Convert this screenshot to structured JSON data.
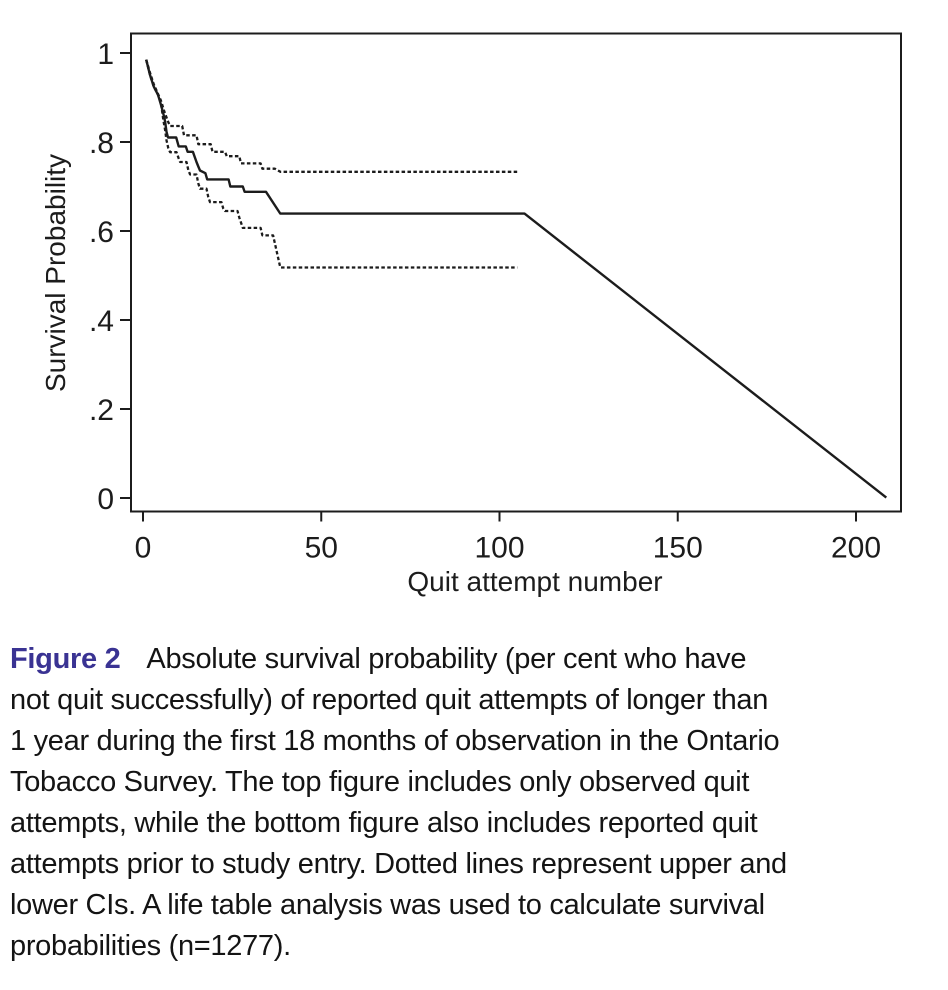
{
  "caption": {
    "label": "Figure 2",
    "lines": [
      "Absolute survival probability (per cent who have",
      "not quit successfully) of reported quit attempts of longer than",
      "1 year during the first 18 months of observation in the Ontario",
      "Tobacco Survey. The top figure includes only observed quit",
      "attempts, while the bottom figure also includes reported quit",
      "attempts prior to study entry. Dotted lines represent upper and",
      "lower CIs. A life table analysis was used to calculate survival",
      "probabilities (n=1277)."
    ],
    "label_color": "#3a3393"
  },
  "chart_data": {
    "type": "line",
    "title": "",
    "xlabel": "Quit attempt number",
    "ylabel": "Survival Probability",
    "xlim": [
      0,
      210
    ],
    "ylim": [
      0,
      1
    ],
    "grid": false,
    "legend": "none",
    "ink_color": "#1c1c1c",
    "xticks": [
      0,
      50,
      100,
      150,
      200
    ],
    "xtick_labels": [
      "0",
      "50",
      "100",
      "150",
      "200"
    ],
    "yticks": [
      1,
      0.8,
      0.6,
      0.4,
      0.2,
      0
    ],
    "ytick_labels": [
      "1",
      ".8",
      ".6",
      ".4",
      ".2",
      "0"
    ],
    "series": [
      {
        "name": "survival-estimate",
        "style": "solid",
        "points": [
          [
            0.9,
            0.985
          ],
          [
            2,
            0.95
          ],
          [
            3,
            0.925
          ],
          [
            4.2,
            0.906
          ],
          [
            5,
            0.885
          ],
          [
            5.7,
            0.864
          ],
          [
            6.2,
            0.846
          ],
          [
            6.6,
            0.823
          ],
          [
            7,
            0.81
          ],
          [
            9.3,
            0.81
          ],
          [
            10,
            0.79
          ],
          [
            12,
            0.79
          ],
          [
            12.5,
            0.778
          ],
          [
            14,
            0.778
          ],
          [
            15,
            0.755
          ],
          [
            15.5,
            0.745
          ],
          [
            16,
            0.736
          ],
          [
            17.5,
            0.73
          ],
          [
            18,
            0.716
          ],
          [
            24,
            0.716
          ],
          [
            24.5,
            0.7
          ],
          [
            28,
            0.7
          ],
          [
            28.5,
            0.688
          ],
          [
            34.5,
            0.688
          ],
          [
            38.5,
            0.639
          ],
          [
            107,
            0.639
          ],
          [
            208.5,
            0.001
          ]
        ]
      },
      {
        "name": "upper-ci",
        "style": "dashed",
        "points": [
          [
            0.9,
            0.985
          ],
          [
            2,
            0.955
          ],
          [
            3,
            0.93
          ],
          [
            4.2,
            0.908
          ],
          [
            5,
            0.894
          ],
          [
            6,
            0.868
          ],
          [
            7,
            0.846
          ],
          [
            7.6,
            0.836
          ],
          [
            11,
            0.836
          ],
          [
            11.5,
            0.815
          ],
          [
            15,
            0.815
          ],
          [
            15.5,
            0.795
          ],
          [
            19,
            0.795
          ],
          [
            19.5,
            0.778
          ],
          [
            23,
            0.778
          ],
          [
            23.5,
            0.768
          ],
          [
            27,
            0.768
          ],
          [
            27.5,
            0.752
          ],
          [
            33,
            0.752
          ],
          [
            33.5,
            0.74
          ],
          [
            37,
            0.74
          ],
          [
            38.5,
            0.733
          ],
          [
            105,
            0.733
          ]
        ]
      },
      {
        "name": "lower-ci",
        "style": "dashed",
        "points": [
          [
            0.9,
            0.985
          ],
          [
            2,
            0.95
          ],
          [
            3,
            0.925
          ],
          [
            4.2,
            0.906
          ],
          [
            5,
            0.89
          ],
          [
            5.7,
            0.85
          ],
          [
            6.2,
            0.827
          ],
          [
            6.6,
            0.804
          ],
          [
            7.1,
            0.786
          ],
          [
            7.6,
            0.777
          ],
          [
            9.4,
            0.777
          ],
          [
            10,
            0.763
          ],
          [
            10.4,
            0.755
          ],
          [
            12.2,
            0.755
          ],
          [
            12.7,
            0.737
          ],
          [
            13.2,
            0.727
          ],
          [
            15,
            0.727
          ],
          [
            15.5,
            0.707
          ],
          [
            16,
            0.695
          ],
          [
            17.8,
            0.695
          ],
          [
            18.3,
            0.677
          ],
          [
            18.8,
            0.665
          ],
          [
            22,
            0.665
          ],
          [
            22.5,
            0.651
          ],
          [
            23,
            0.645
          ],
          [
            26.5,
            0.645
          ],
          [
            27,
            0.63
          ],
          [
            28,
            0.607
          ],
          [
            33,
            0.607
          ],
          [
            33.5,
            0.59
          ],
          [
            36.5,
            0.59
          ],
          [
            38.5,
            0.518
          ],
          [
            105,
            0.518
          ]
        ]
      }
    ],
    "annotations": []
  }
}
